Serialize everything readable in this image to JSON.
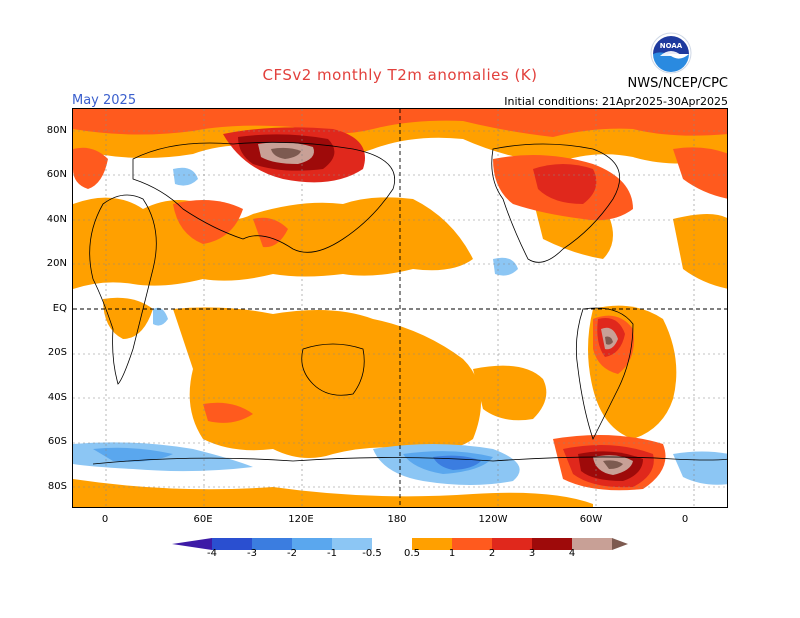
{
  "title": "CFSv2 monthly T2m anomalies (K)",
  "period": "May 2025",
  "initial_conditions": "Initial conditions: 21Apr2025-30Apr2025",
  "agency": "NWS/NCEP/CPC",
  "logo_text": "NOAA",
  "lat_labels": [
    "80N",
    "60N",
    "40N",
    "20N",
    "EQ",
    "20S",
    "40S",
    "60S",
    "80S"
  ],
  "lon_labels": [
    "0",
    "60E",
    "120E",
    "180",
    "120W",
    "60W",
    "0"
  ],
  "colorbar": {
    "labels": [
      "-4",
      "-3",
      "-2",
      "-1",
      "-0.5",
      "0.5",
      "1",
      "2",
      "3",
      "4"
    ],
    "colors": [
      "#3d1aa6",
      "#2a4fd0",
      "#3b7de0",
      "#5aa7ee",
      "#8cc6f4",
      "#ffffff",
      "#ffa000",
      "#ff5a1e",
      "#e0281c",
      "#9e0a0a",
      "#c8a096",
      "#7d5a50"
    ]
  },
  "colors": {
    "title": "#e2403c",
    "period": "#3a5fcd",
    "warm_light": "#ffa000",
    "warm_mid": "#ff5a1e",
    "warm_strong": "#e0281c",
    "warm_dark": "#9e0a0a",
    "warm_extreme": "#c8a096",
    "warm_max": "#7d5a50",
    "cool_light": "#8cc6f4",
    "cool_mid": "#5aa7ee",
    "cool_strong": "#3b7de0",
    "cool_dark": "#2a4fd0"
  }
}
